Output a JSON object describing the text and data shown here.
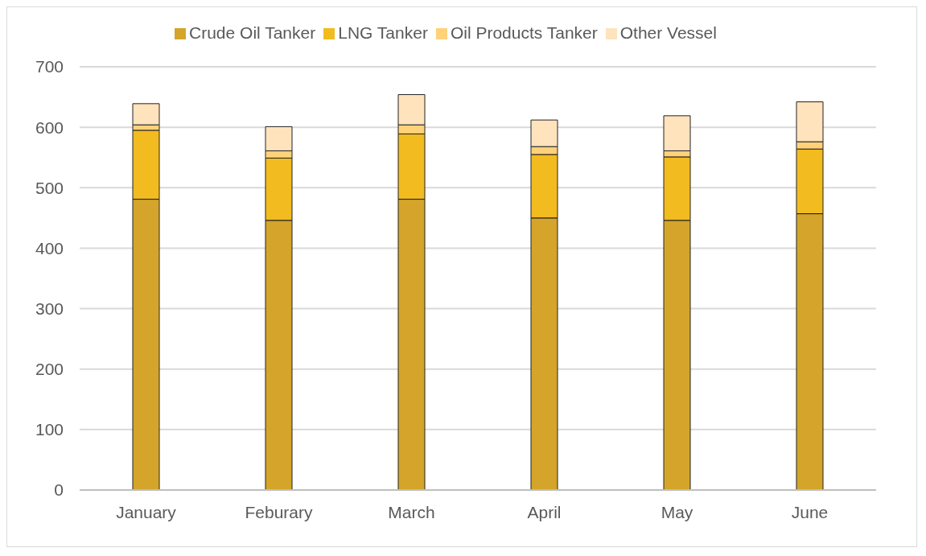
{
  "chart_data": {
    "type": "bar",
    "stacked": true,
    "categories": [
      "January",
      "Feburary",
      "March",
      "April",
      "May",
      "June"
    ],
    "series": [
      {
        "name": "Crude Oil Tanker",
        "color": "#d4a52a",
        "values": [
          481,
          446,
          481,
          450,
          446,
          457
        ]
      },
      {
        "name": "LNG Tanker",
        "color": "#f2bb1f",
        "values": [
          114,
          103,
          108,
          105,
          105,
          107
        ]
      },
      {
        "name": "Oil Products Tanker",
        "color": "#ffd27a",
        "values": [
          9,
          12,
          15,
          13,
          10,
          12
        ]
      },
      {
        "name": "Other Vessel",
        "color": "#ffe3bd",
        "values": [
          35,
          40,
          50,
          44,
          58,
          66
        ]
      }
    ],
    "ylim": [
      0,
      700
    ],
    "yticks": [
      0,
      100,
      200,
      300,
      400,
      500,
      600,
      700
    ],
    "grid": "y",
    "legend": "top"
  }
}
